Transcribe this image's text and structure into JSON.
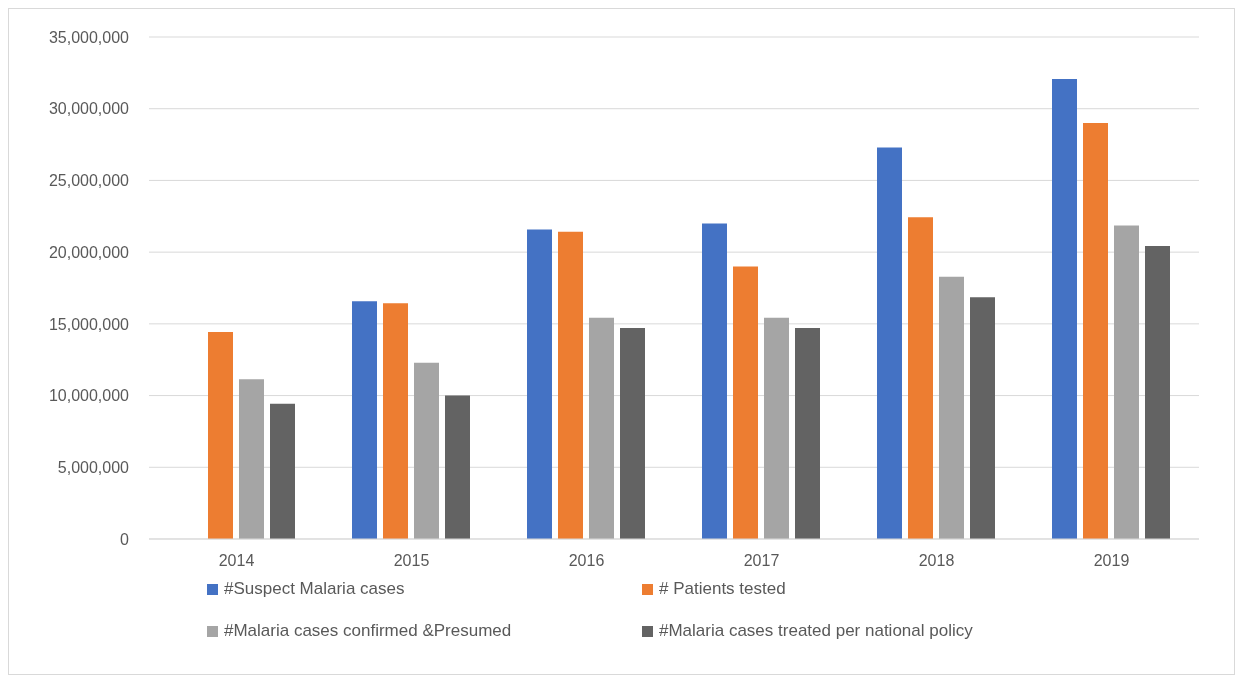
{
  "chart_data": {
    "type": "bar",
    "categories": [
      "2014",
      "2015",
      "2016",
      "2017",
      "2018",
      "2019"
    ],
    "series": [
      {
        "name": "#Suspect Malaria cases",
        "color": "#4472c4",
        "values": [
          null,
          16570000,
          21570000,
          22000000,
          27290000,
          32070000
        ]
      },
      {
        "name": "# Patients tested",
        "color": "#ed7d31",
        "values": [
          14430000,
          16430000,
          21430000,
          19000000,
          22430000,
          29000000
        ]
      },
      {
        "name": "#Malaria cases confirmed &Presumed",
        "color": "#a5a5a5",
        "values": [
          11140000,
          12290000,
          15430000,
          15430000,
          18290000,
          21860000
        ]
      },
      {
        "name": "#Malaria cases treated per national policy",
        "color": "#636363",
        "values": [
          9430000,
          10000000,
          14710000,
          14710000,
          16860000,
          20430000
        ]
      }
    ],
    "ylim": [
      0,
      35000000
    ],
    "yticks": [
      0,
      {
        "value": 5000000,
        "label": "5,000,000"
      },
      {
        "value": 10000000,
        "label": "10,000,000"
      },
      {
        "value": 15000000,
        "label": "15,000,000"
      },
      {
        "value": 20000000,
        "label": "20,000,000"
      },
      {
        "value": 25000000,
        "label": "25,000,000"
      },
      {
        "value": 30000000,
        "label": "30,000,000"
      },
      {
        "value": 35000000,
        "label": "35,000,000"
      }
    ],
    "grid": "y",
    "legend": "bottom"
  }
}
